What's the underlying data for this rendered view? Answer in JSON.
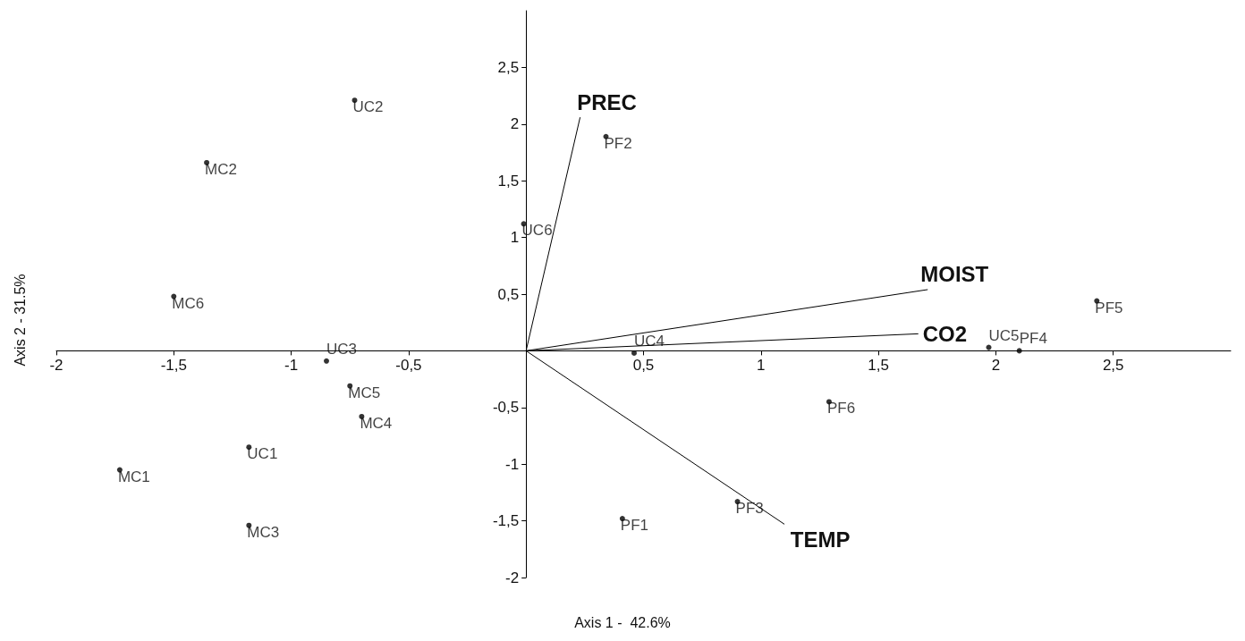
{
  "chart_data": {
    "type": "scatter",
    "xlabel": "Axis 1 -  42.6%",
    "ylabel": "Axis 2 - 31.5%",
    "xlim": [
      -2,
      3
    ],
    "ylim": [
      -2,
      3
    ],
    "xticks": [
      -2,
      {
        "value": -1.5,
        "label": "-1,5"
      },
      -1,
      {
        "value": -0.5,
        "label": "-0,5"
      },
      {
        "value": 0.5,
        "label": "0,5"
      },
      1,
      {
        "value": 1.5,
        "label": "1,5"
      },
      2,
      {
        "value": 2.5,
        "label": "2,5"
      }
    ],
    "yticks": [
      -2,
      {
        "value": -1.5,
        "label": "-1,5"
      },
      -1,
      {
        "value": -0.5,
        "label": "-0,5"
      },
      {
        "value": 0.5,
        "label": "0,5"
      },
      1,
      {
        "value": 1.5,
        "label": "1,5"
      },
      2,
      {
        "value": 2.5,
        "label": "2,5"
      }
    ],
    "grid": false,
    "legend": false,
    "marker": "circle",
    "series": [
      {
        "color": "#000000",
        "x": [
          -0.73,
          -1.36,
          0.34,
          -0.01,
          -1.5,
          2.43,
          1.97,
          2.1,
          0.46,
          -0.85,
          -0.75,
          -0.7,
          1.29,
          -1.18,
          -1.73,
          -1.18,
          0.41,
          0.9
        ],
        "values": [
          2.21,
          1.66,
          1.89,
          1.12,
          0.48,
          0.44,
          0.03,
          0.0,
          -0.02,
          -0.09,
          -0.31,
          -0.58,
          -0.45,
          -0.85,
          -1.05,
          -1.54,
          -1.48,
          -1.33
        ],
        "value_labels": [
          "UC2",
          "MC2",
          "PF2",
          "UC6",
          "MC6",
          "PF5",
          "UC5",
          "PF4",
          "UC4",
          "UC3",
          "MC5",
          "MC4",
          "PF6",
          "UC1",
          "MC1",
          "MC3",
          "PF1",
          "PF3"
        ]
      },
      {
        "type": "line",
        "name": "PREC",
        "color": "#000000",
        "marker": "none",
        "x": [
          0,
          0.23
        ],
        "values": [
          0,
          2.06
        ]
      },
      {
        "type": "line",
        "name": "MOIST",
        "color": "#000000",
        "marker": "none",
        "x": [
          0,
          1.71
        ],
        "values": [
          0,
          0.54
        ]
      },
      {
        "type": "line",
        "name": "CO2",
        "color": "#000000",
        "marker": "none",
        "x": [
          0,
          1.67
        ],
        "values": [
          0,
          0.15
        ]
      },
      {
        "type": "line",
        "name": "TEMP",
        "color": "#000000",
        "marker": "none",
        "x": [
          0,
          1.1
        ],
        "values": [
          0,
          -1.53
        ]
      }
    ]
  }
}
